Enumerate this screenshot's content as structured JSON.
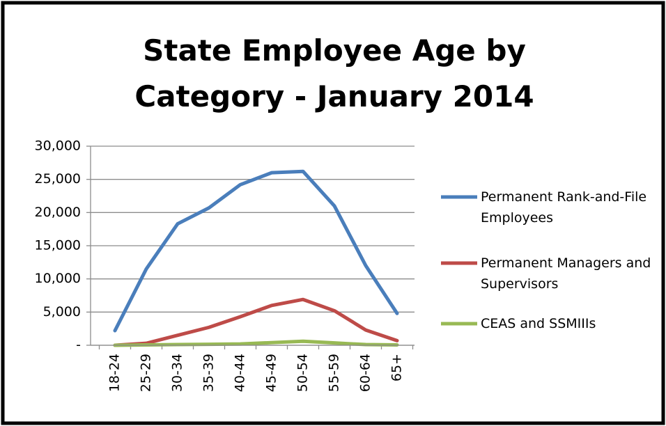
{
  "chart_data": {
    "type": "line",
    "title": "State Employee Age by Category - January 2014",
    "categories": [
      "18-24",
      "25-29",
      "30-34",
      "35-39",
      "40-44",
      "45-49",
      "50-54",
      "55-59",
      "60-64",
      "65+"
    ],
    "series": [
      {
        "name": "Permanent Rank-and-File Employees",
        "color": "#4a7ebb",
        "values": [
          2200,
          11500,
          18300,
          20700,
          24200,
          26000,
          26200,
          21000,
          12000,
          4800
        ]
      },
      {
        "name": "Permanent Managers and Supervisors",
        "color": "#be4b48",
        "values": [
          0,
          300,
          1500,
          2700,
          4300,
          6000,
          6900,
          5200,
          2300,
          700
        ]
      },
      {
        "name": "CEAS and SSMIIIs",
        "color": "#98b954",
        "values": [
          0,
          50,
          100,
          150,
          200,
          400,
          600,
          350,
          100,
          50
        ]
      }
    ],
    "ylim": [
      0,
      30000
    ],
    "yticks": [
      {
        "value": 0,
        "label": "-"
      },
      {
        "value": 5000,
        "label": "5,000"
      },
      {
        "value": 10000,
        "label": "10,000"
      },
      {
        "value": 15000,
        "label": "15,000"
      },
      {
        "value": 20000,
        "label": "20,000"
      },
      {
        "value": 25000,
        "label": "25,000"
      },
      {
        "value": 30000,
        "label": "30,000"
      }
    ],
    "grid": true,
    "legend": "right"
  }
}
